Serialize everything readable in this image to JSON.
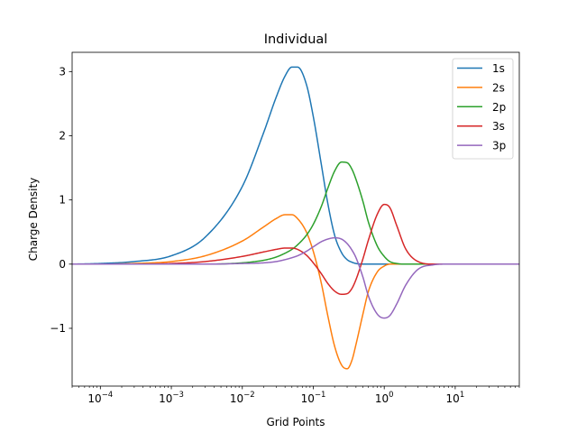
{
  "chart_data": {
    "type": "line",
    "title": "Individual",
    "xlabel": "Grid Points",
    "ylabel": "Charge Density",
    "xscale": "log",
    "xlim": [
      4e-05,
      80
    ],
    "ylim": [
      -1.9,
      3.3
    ],
    "grid": false,
    "legend_position": "top-right",
    "x_ticks": [
      {
        "value": 0.0001,
        "base": "10",
        "exp": "−4"
      },
      {
        "value": 0.001,
        "base": "10",
        "exp": "−3"
      },
      {
        "value": 0.01,
        "base": "10",
        "exp": "−2"
      },
      {
        "value": 0.1,
        "base": "10",
        "exp": "−1"
      },
      {
        "value": 1,
        "base": "10",
        "exp": "0"
      },
      {
        "value": 10,
        "base": "10",
        "exp": "1"
      }
    ],
    "y_ticks": [
      {
        "value": -1,
        "label": "−1"
      },
      {
        "value": 0,
        "label": "0"
      },
      {
        "value": 1,
        "label": "1"
      },
      {
        "value": 2,
        "label": "2"
      },
      {
        "value": 3,
        "label": "3"
      }
    ],
    "x": [
      4e-05,
      0.0001,
      0.0003,
      0.001,
      0.003,
      0.01,
      0.02,
      0.03,
      0.04,
      0.05,
      0.06,
      0.08,
      0.1,
      0.13,
      0.16,
      0.2,
      0.25,
      0.3,
      0.35,
      0.4,
      0.5,
      0.6,
      0.8,
      1.0,
      1.2,
      1.5,
      2.0,
      3.0,
      5.0,
      7.0,
      10,
      20,
      80
    ],
    "series": [
      {
        "name": "1s",
        "color": "#1f77b4",
        "values": [
          0.0,
          0.01,
          0.04,
          0.13,
          0.42,
          1.21,
          2.05,
          2.6,
          2.93,
          3.07,
          3.07,
          2.8,
          2.3,
          1.55,
          0.95,
          0.45,
          0.18,
          0.07,
          0.03,
          0.01,
          0.0,
          0.0,
          0.0,
          0.0,
          0.0,
          0.0,
          0.0,
          0.0,
          0.0,
          0.0,
          0.0,
          0.0,
          0.0
        ]
      },
      {
        "name": "2s",
        "color": "#ff7f0e",
        "values": [
          0.0,
          0.0,
          0.01,
          0.04,
          0.13,
          0.36,
          0.58,
          0.71,
          0.77,
          0.77,
          0.71,
          0.5,
          0.2,
          -0.3,
          -0.8,
          -1.28,
          -1.57,
          -1.63,
          -1.5,
          -1.25,
          -0.78,
          -0.42,
          -0.12,
          -0.03,
          0.0,
          0.0,
          0.0,
          0.0,
          0.0,
          0.0,
          0.0,
          0.0,
          0.0
        ]
      },
      {
        "name": "2p",
        "color": "#2ca02c",
        "values": [
          0.0,
          0.0,
          0.0,
          0.0,
          0.0,
          0.02,
          0.06,
          0.11,
          0.17,
          0.23,
          0.3,
          0.45,
          0.62,
          0.9,
          1.18,
          1.45,
          1.59,
          1.58,
          1.48,
          1.32,
          0.98,
          0.65,
          0.28,
          0.12,
          0.04,
          0.01,
          0.0,
          0.0,
          0.0,
          0.0,
          0.0,
          0.0,
          0.0
        ]
      },
      {
        "name": "3s",
        "color": "#d62728",
        "values": [
          0.0,
          0.0,
          0.0,
          0.01,
          0.04,
          0.12,
          0.19,
          0.23,
          0.25,
          0.25,
          0.23,
          0.14,
          0.02,
          -0.15,
          -0.3,
          -0.42,
          -0.47,
          -0.46,
          -0.38,
          -0.24,
          0.08,
          0.38,
          0.78,
          0.93,
          0.88,
          0.6,
          0.24,
          0.04,
          0.0,
          0.0,
          0.0,
          0.0,
          0.0
        ]
      },
      {
        "name": "3p",
        "color": "#9467bd",
        "values": [
          0.0,
          0.0,
          0.0,
          0.0,
          0.0,
          0.01,
          0.02,
          0.04,
          0.07,
          0.1,
          0.13,
          0.2,
          0.27,
          0.35,
          0.39,
          0.41,
          0.39,
          0.32,
          0.22,
          0.1,
          -0.2,
          -0.5,
          -0.78,
          -0.84,
          -0.8,
          -0.62,
          -0.33,
          -0.08,
          -0.01,
          0.0,
          0.0,
          0.0,
          0.0
        ]
      }
    ]
  }
}
